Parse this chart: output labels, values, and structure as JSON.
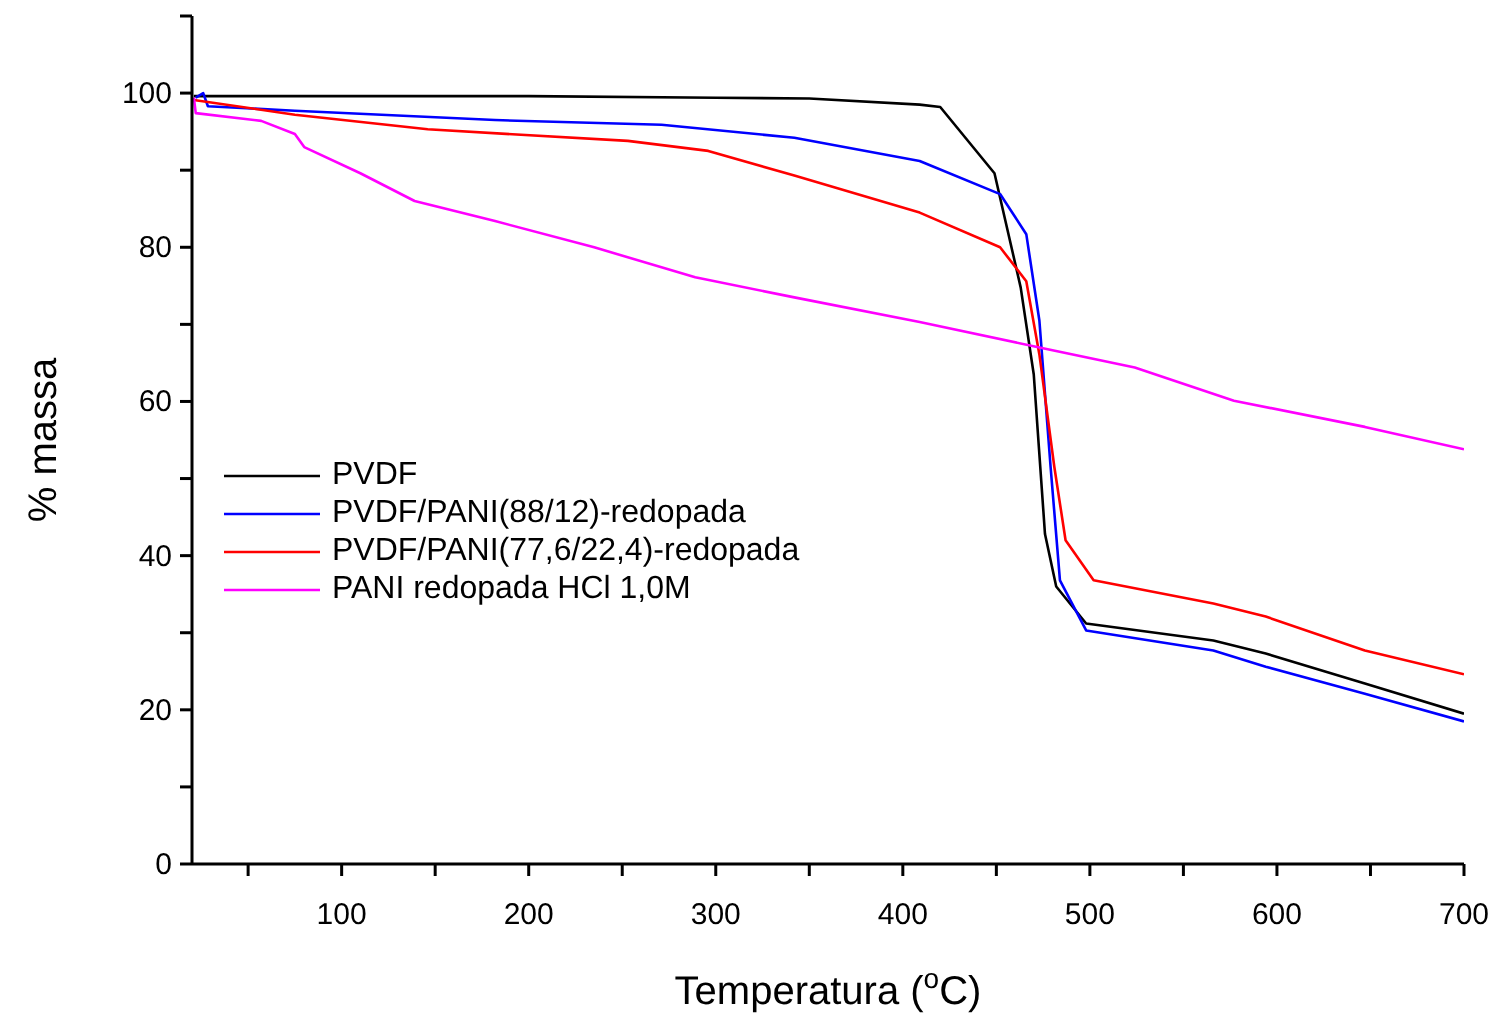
{
  "chart_data": {
    "type": "line",
    "xlabel": "Temperatura ($^{o}$C)",
    "ylabel": "% massa",
    "xlim": [
      20,
      700
    ],
    "ylim": [
      0,
      110
    ],
    "xticks": [
      {
        "value": 50,
        "label": null
      },
      100,
      {
        "value": 150,
        "label": null
      },
      200,
      {
        "value": 250,
        "label": null
      },
      300,
      {
        "value": 350,
        "label": null
      },
      400,
      {
        "value": 450,
        "label": null
      },
      500,
      {
        "value": 550,
        "label": null
      },
      600,
      {
        "value": 650,
        "label": null
      },
      700
    ],
    "yticks": [
      0,
      {
        "value": 10,
        "label": null
      },
      20,
      {
        "value": 30,
        "label": null
      },
      40,
      {
        "value": 50,
        "label": null
      },
      60,
      {
        "value": 70,
        "label": null
      },
      80,
      {
        "value": 90,
        "label": null
      },
      100,
      {
        "value": 110,
        "label": null
      }
    ],
    "grid": false,
    "legend": "left",
    "marker": "none",
    "line_style": "solid",
    "series": [
      {
        "name": "PVDF",
        "color": "#000000",
        "x": [
          21,
          100,
          200,
          300,
          350,
          409,
          420,
          449,
          463,
          470,
          476,
          482,
          498,
          566,
          594,
          647,
          700
        ],
        "values": [
          99.6,
          99.6,
          99.6,
          99.4,
          99.3,
          98.5,
          98.2,
          89.6,
          74.8,
          63.5,
          42.8,
          36,
          31.2,
          29,
          27.3,
          23.4,
          19.5
        ]
      },
      {
        "name": "PVDF/PANI(88/12)-redopada",
        "color": "#0000ff",
        "x": [
          22,
          26,
          28.5,
          75,
          182,
          271,
          342,
          409,
          452,
          466,
          473,
          479,
          484,
          498,
          566,
          594,
          647,
          700
        ],
        "values": [
          99.4,
          100,
          98.3,
          97.7,
          96.5,
          95.9,
          94.2,
          91.2,
          86.9,
          81.7,
          70.5,
          51.5,
          36.8,
          30.3,
          27.7,
          25.6,
          22.1,
          18.5
        ]
      },
      {
        "name": "PVDF/PANI(77,6/22,4)-redopada",
        "color": "#ff0000",
        "x": [
          21,
          75,
          146,
          253,
          296,
          342,
          409,
          452,
          466,
          473,
          481,
          487,
          502,
          566,
          594,
          647,
          700
        ],
        "values": [
          99.1,
          97.2,
          95.3,
          93.8,
          92.5,
          89.3,
          84.5,
          80,
          75.6,
          66.1,
          51.5,
          42,
          36.8,
          33.8,
          32.1,
          27.7,
          24.6
        ]
      },
      {
        "name": "PANI redopada HCl 1,0M",
        "color": "#ff00ff",
        "x": [
          21,
          22,
          57,
          75,
          80,
          110,
          139,
          182,
          235,
          289,
          342,
          409,
          473,
          524,
          577,
          647,
          700
        ],
        "values": [
          99.4,
          97.4,
          96.4,
          94.7,
          93,
          89.6,
          86,
          83.4,
          80,
          76.1,
          73.5,
          70.3,
          67,
          64.4,
          60.1,
          56.7,
          53.8
        ]
      }
    ]
  }
}
